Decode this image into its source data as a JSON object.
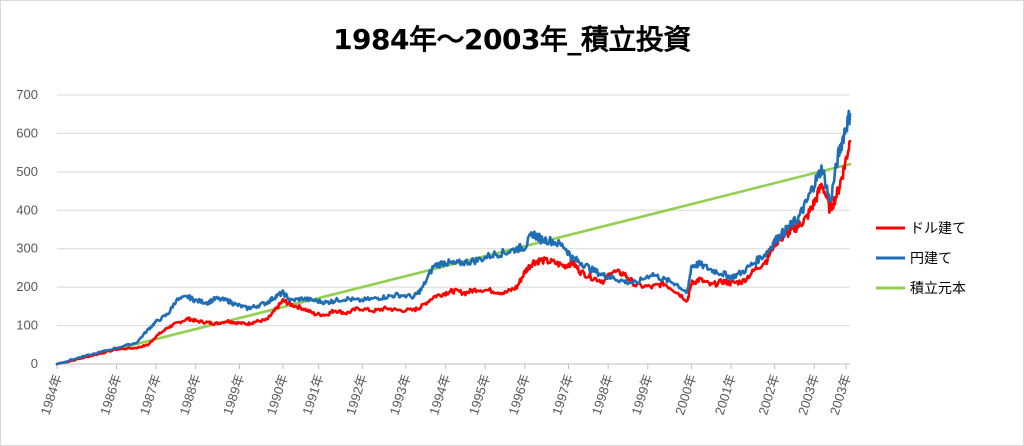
{
  "chart_data": {
    "type": "line",
    "title": "1984年～2003年_積立投資",
    "xlabel": "",
    "ylabel": "",
    "ylim": [
      0,
      700
    ],
    "yticks": [
      0,
      100,
      200,
      300,
      400,
      500,
      600,
      700
    ],
    "grid": true,
    "legend_position": "right",
    "x_range": [
      1984.0,
      2004.0
    ],
    "xtick_labels": [
      {
        "x": 1984.0,
        "label": "1984年"
      },
      {
        "x": 1985.5,
        "label": "1986年"
      },
      {
        "x": 1986.5,
        "label": "1987年"
      },
      {
        "x": 1987.5,
        "label": "1988年"
      },
      {
        "x": 1988.6,
        "label": "1989年"
      },
      {
        "x": 1989.7,
        "label": "1990年"
      },
      {
        "x": 1990.6,
        "label": "1991年"
      },
      {
        "x": 1991.7,
        "label": "1992年"
      },
      {
        "x": 1992.8,
        "label": "1993年"
      },
      {
        "x": 1993.8,
        "label": "1994年"
      },
      {
        "x": 1994.8,
        "label": "1995年"
      },
      {
        "x": 1995.8,
        "label": "1996年"
      },
      {
        "x": 1996.9,
        "label": "1997年"
      },
      {
        "x": 1997.9,
        "label": "1998年"
      },
      {
        "x": 1998.9,
        "label": "1999年"
      },
      {
        "x": 2000.0,
        "label": "2000年"
      },
      {
        "x": 2001.0,
        "label": "2001年"
      },
      {
        "x": 2002.1,
        "label": "2002年"
      },
      {
        "x": 2003.1,
        "label": "2003年"
      },
      {
        "x": 2003.9,
        "label": "2003年"
      }
    ],
    "series": [
      {
        "name": "ドル建て",
        "color": "#ff0000",
        "x": [
          1984.0,
          1984.5,
          1985.0,
          1985.5,
          1986.0,
          1986.3,
          1986.5,
          1986.8,
          1987.0,
          1987.3,
          1987.5,
          1987.8,
          1988.0,
          1988.3,
          1988.5,
          1988.8,
          1989.0,
          1989.3,
          1989.5,
          1989.7,
          1989.9,
          1990.2,
          1990.5,
          1990.8,
          1991.0,
          1991.3,
          1991.6,
          1992.0,
          1992.3,
          1992.6,
          1993.0,
          1993.2,
          1993.5,
          1993.8,
          1994.0,
          1994.3,
          1994.6,
          1995.0,
          1995.3,
          1995.6,
          1995.8,
          1996.0,
          1996.2,
          1996.5,
          1996.8,
          1997.0,
          1997.2,
          1997.5,
          1997.8,
          1998.0,
          1998.3,
          1998.6,
          1999.0,
          1999.3,
          1999.6,
          1999.9,
          2000.0,
          2000.2,
          2000.5,
          2000.8,
          2001.0,
          2001.3,
          2001.6,
          2001.9,
          2002.1,
          2002.3,
          2002.5,
          2002.7,
          2002.9,
          2003.1,
          2003.3,
          2003.5,
          2003.7,
          2003.85,
          2004.0
        ],
        "values": [
          0,
          12,
          25,
          38,
          42,
          50,
          72,
          95,
          105,
          118,
          112,
          108,
          105,
          112,
          108,
          104,
          110,
          115,
          140,
          165,
          155,
          145,
          130,
          128,
          140,
          132,
          145,
          138,
          145,
          140,
          140,
          150,
          175,
          185,
          190,
          185,
          195,
          190,
          185,
          200,
          240,
          265,
          270,
          265,
          255,
          265,
          240,
          225,
          215,
          240,
          235,
          205,
          200,
          210,
          190,
          165,
          210,
          220,
          205,
          215,
          210,
          215,
          245,
          270,
          315,
          330,
          345,
          360,
          380,
          420,
          470,
          400,
          450,
          510,
          580
        ]
      },
      {
        "name": "円建て",
        "color": "#1f6db5",
        "x": [
          1984.0,
          1984.5,
          1985.0,
          1985.5,
          1986.0,
          1986.3,
          1986.5,
          1986.8,
          1987.0,
          1987.3,
          1987.5,
          1987.8,
          1988.0,
          1988.3,
          1988.5,
          1988.8,
          1989.0,
          1989.3,
          1989.5,
          1989.7,
          1989.9,
          1990.2,
          1990.5,
          1990.8,
          1991.0,
          1991.3,
          1991.6,
          1992.0,
          1992.3,
          1992.6,
          1993.0,
          1993.2,
          1993.5,
          1993.8,
          1994.0,
          1994.3,
          1994.6,
          1995.0,
          1995.3,
          1995.6,
          1995.8,
          1996.0,
          1996.2,
          1996.5,
          1996.8,
          1997.0,
          1997.2,
          1997.5,
          1997.8,
          1998.0,
          1998.3,
          1998.6,
          1999.0,
          1999.3,
          1999.6,
          1999.9,
          2000.0,
          2000.2,
          2000.5,
          2000.8,
          2001.0,
          2001.3,
          2001.6,
          2001.9,
          2002.1,
          2002.3,
          2002.5,
          2002.7,
          2002.9,
          2003.1,
          2003.3,
          2003.5,
          2003.7,
          2003.85,
          2004.0
        ],
        "values": [
          0,
          15,
          28,
          42,
          55,
          90,
          110,
          130,
          165,
          175,
          165,
          160,
          170,
          165,
          155,
          145,
          150,
          160,
          175,
          185,
          165,
          170,
          165,
          160,
          165,
          170,
          165,
          170,
          175,
          180,
          175,
          195,
          255,
          265,
          260,
          265,
          270,
          285,
          290,
          300,
          305,
          340,
          325,
          320,
          305,
          275,
          265,
          245,
          230,
          225,
          215,
          210,
          235,
          220,
          210,
          185,
          255,
          260,
          245,
          235,
          225,
          240,
          265,
          290,
          320,
          340,
          360,
          380,
          420,
          470,
          510,
          420,
          540,
          600,
          650
        ]
      },
      {
        "name": "積立元本",
        "color": "#92d050",
        "x": [
          1984.0,
          2004.0
        ],
        "values": [
          0,
          520
        ]
      }
    ]
  }
}
